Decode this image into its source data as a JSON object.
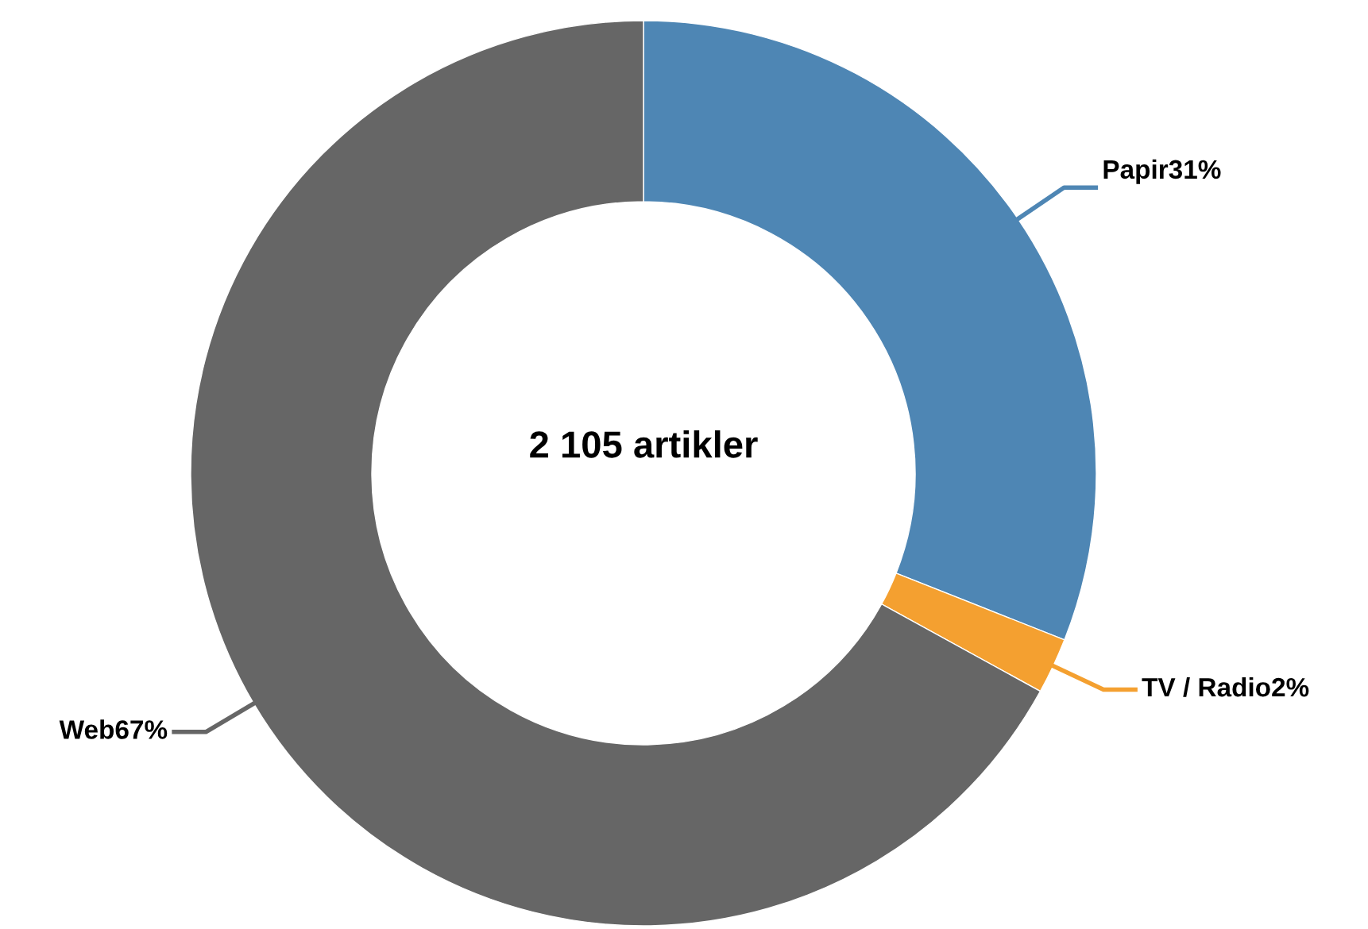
{
  "chart_data": {
    "type": "donut",
    "categories": [
      "Papir",
      "TV / Radio",
      "Web"
    ],
    "values": [
      31,
      2,
      67
    ],
    "value_labels": [
      "31%",
      "2%",
      "67%"
    ],
    "colors": [
      "#4e86b4",
      "#f4a030",
      "#666666"
    ],
    "annotations": [
      "2 105 artikler"
    ],
    "legend": false
  }
}
